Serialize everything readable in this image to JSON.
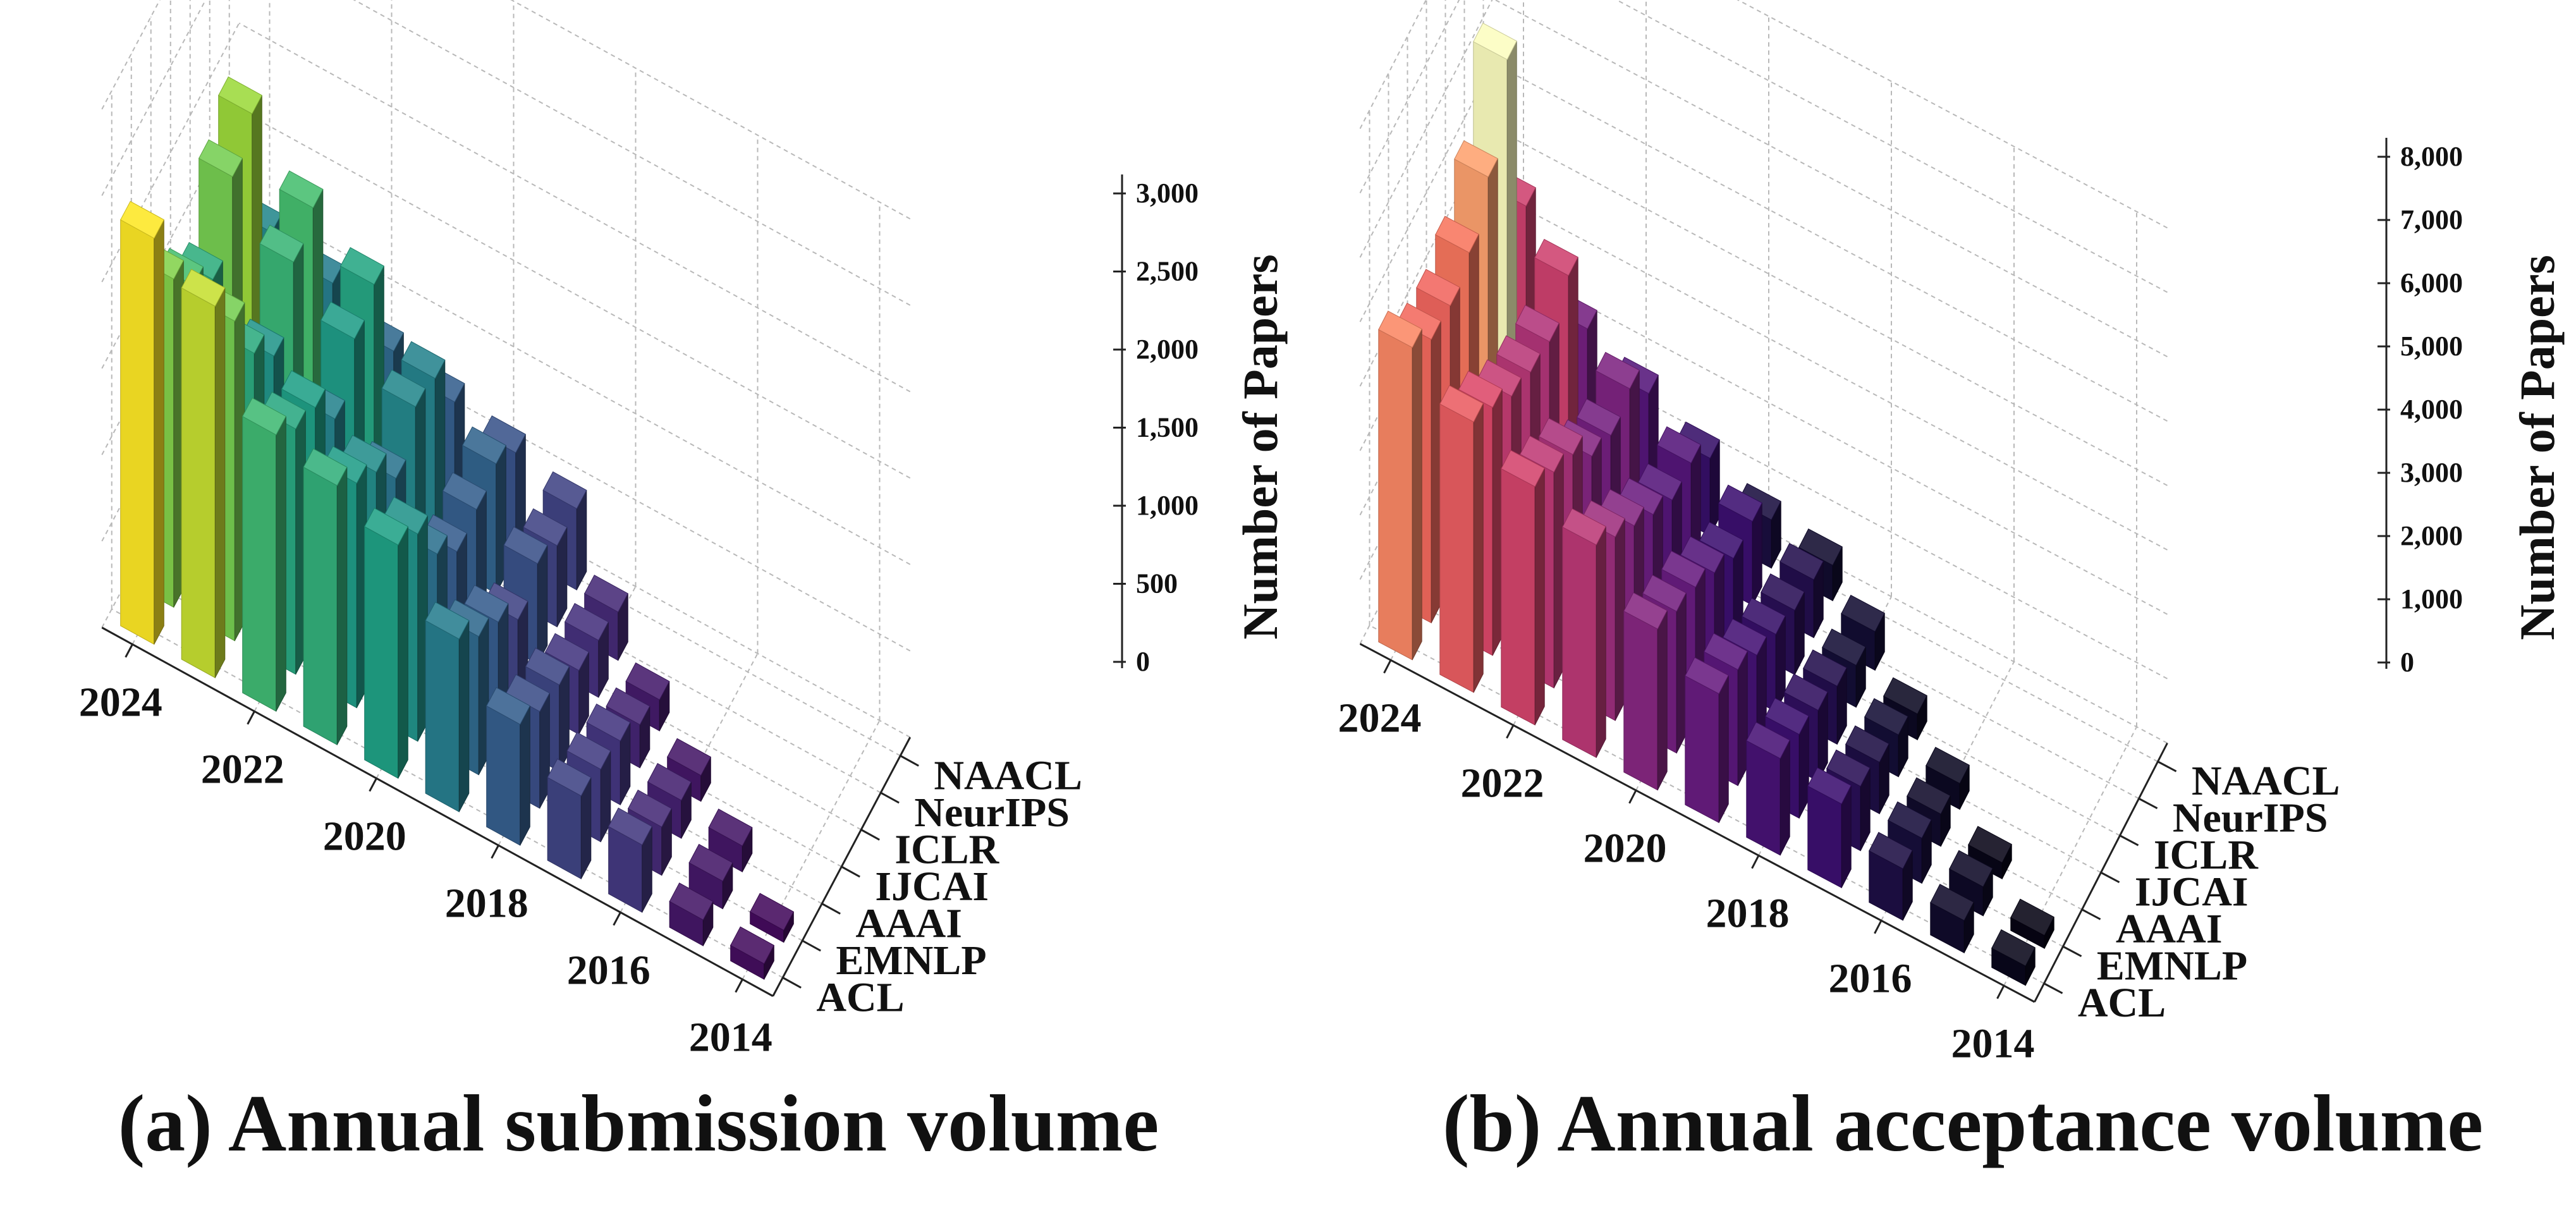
{
  "chart_data": [
    {
      "type": "bar3d",
      "title": "(a) Annual submission volume",
      "zlabel": "Number of Papers",
      "years": [
        2014,
        2015,
        2016,
        2017,
        2018,
        2019,
        2020,
        2021,
        2022,
        2023,
        2024
      ],
      "year_tick_labels": [
        "2014",
        "2016",
        "2018",
        "2020",
        "2022",
        "2024"
      ],
      "conferences": [
        "ACL",
        "EMNLP",
        "AAAI",
        "IJCAI",
        "ICLR",
        "NeurIPS",
        "NAACL"
      ],
      "z_ticks": [
        0,
        500,
        1000,
        1500,
        2000,
        2500,
        3000
      ],
      "z_tick_labels": [
        "0",
        "500",
        "1,000",
        "1,500",
        "2,000",
        "2,500",
        "3,000"
      ],
      "zlim": [
        0,
        3000
      ],
      "colormap": "viridis",
      "colormap_colors": [
        "#440154",
        "#46327e",
        "#365c8d",
        "#277f8e",
        "#1fa187",
        "#4ac16d",
        "#a0da39",
        "#fde725"
      ],
      "values": [
        [
          90,
          150,
          390,
          480,
          700,
          1000,
          1350,
          1500,
          1600,
          2150,
          2350
        ],
        [
          70,
          160,
          280,
          420,
          560,
          800,
          1200,
          1300,
          1420,
          1850,
          1900
        ],
        [
          0,
          150,
          220,
          370,
          500,
          670,
          870,
          1150,
          1330,
          1450,
          1650
        ],
        [
          0,
          0,
          150,
          250,
          370,
          470,
          670,
          900,
          1050,
          1220,
          1470
        ],
        [
          0,
          0,
          0,
          180,
          330,
          580,
          700,
          1100,
          1300,
          1550,
          1850
        ],
        [
          0,
          0,
          0,
          0,
          280,
          470,
          750,
          1050,
          1400,
          1650,
          2000
        ],
        [
          0,
          0,
          0,
          0,
          0,
          470,
          600,
          700,
          800,
          1000,
          1100
        ]
      ]
    },
    {
      "type": "bar3d",
      "title": "(b) Annual acceptance volume",
      "zlabel": "Number of Papers",
      "years": [
        2014,
        2015,
        2016,
        2017,
        2018,
        2019,
        2020,
        2021,
        2022,
        2023,
        2024
      ],
      "year_tick_labels": [
        "2014",
        "2016",
        "2018",
        "2020",
        "2022",
        "2024"
      ],
      "conferences": [
        "ACL",
        "EMNLP",
        "AAAI",
        "IJCAI",
        "ICLR",
        "NeurIPS",
        "NAACL"
      ],
      "z_ticks": [
        0,
        1000,
        2000,
        3000,
        4000,
        5000,
        6000,
        7000,
        8000
      ],
      "z_tick_labels": [
        "0",
        "1,000",
        "2,000",
        "3,000",
        "4,000",
        "5,000",
        "6,000",
        "7,000",
        "8,000"
      ],
      "zlim": [
        0,
        8000
      ],
      "colormap": "magma",
      "colormap_colors": [
        "#000004",
        "#140e36",
        "#3b0f70",
        "#641a80",
        "#8c2981",
        "#b73779",
        "#de4968",
        "#f7705c",
        "#fe9f6d",
        "#fecf92",
        "#fcfdbf"
      ],
      "values": [
        [
          300,
          500,
          800,
          1300,
          1500,
          2000,
          2500,
          3300,
          3700,
          4200,
          4850
        ],
        [
          200,
          450,
          700,
          1000,
          1300,
          1800,
          2200,
          2850,
          3350,
          3850,
          4400
        ],
        [
          0,
          250,
          500,
          800,
          1100,
          1450,
          2000,
          2450,
          3050,
          3450,
          4350
        ],
        [
          0,
          0,
          400,
          650,
          900,
          1200,
          1650,
          2050,
          2450,
          3250,
          4600
        ],
        [
          0,
          0,
          0,
          400,
          650,
          1000,
          1300,
          1700,
          2200,
          3150,
          5200
        ],
        [
          0,
          0,
          0,
          0,
          600,
          900,
          1300,
          1700,
          2350,
          3600,
          6450
        ],
        [
          0,
          0,
          0,
          0,
          0,
          550,
          750,
          1200,
          1700,
          2200,
          3600
        ]
      ]
    }
  ]
}
